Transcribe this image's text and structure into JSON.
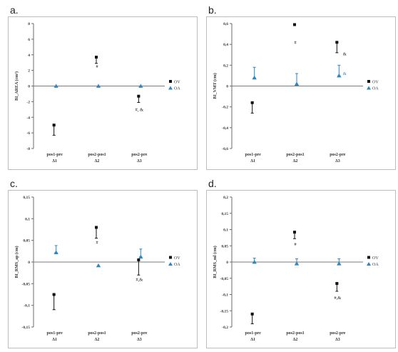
{
  "chart_data": [
    {
      "type": "scatter",
      "panel_label": "a.",
      "ylabel": "BI_AREA (cm²)",
      "ylim": [
        -8,
        8
      ],
      "yticks": [
        -8,
        -6,
        -4,
        -2,
        0,
        2,
        4,
        6,
        8
      ],
      "ytick_labels": [
        "-8",
        "-6",
        "-4",
        "-2",
        "0",
        "2",
        "4",
        "6",
        "8"
      ],
      "categories": [
        [
          "pos1-pre",
          "Δ1"
        ],
        [
          "pos2-pos1",
          "Δ2"
        ],
        [
          "pos2-pre",
          "Δ3"
        ]
      ],
      "series": [
        {
          "name": "OV",
          "marker": "square",
          "color": "#111111",
          "values": [
            -5.0,
            3.7,
            -1.3
          ],
          "err_low": [
            1.3,
            0,
            0.8
          ],
          "err_high": [
            0,
            0,
            0
          ],
          "err_up_extra": [
            0,
            0,
            0
          ],
          "err_down_bar": [
            1.3,
            0,
            0.8
          ],
          "err_up_bar": [
            0,
            0,
            0
          ]
        },
        {
          "name": "OA",
          "marker": "triangle",
          "color": "#2e86c1",
          "values": [
            0.0,
            0.0,
            0.0
          ]
        }
      ],
      "err_ov_low": [
        -6.3,
        2.9,
        -2.1
      ],
      "err_ov_high": [
        -5.0,
        3.7,
        -1.3
      ],
      "annotations": [
        {
          "text": "#",
          "category": 1,
          "y": 2.5,
          "color": "#111111"
        },
        {
          "text": "#, &",
          "category": 2,
          "y": -3.0,
          "color": "#111111"
        }
      ],
      "legend": [
        "OV",
        "OA"
      ],
      "legend_position": "right"
    },
    {
      "type": "scatter",
      "panel_label": "b.",
      "ylabel": "BI_VMT (cm)",
      "ylim": [
        -0.6,
        0.6
      ],
      "yticks": [
        -0.6,
        -0.4,
        -0.2,
        0,
        0.2,
        0.4,
        0.6
      ],
      "ytick_labels": [
        "-0,6",
        "-0,4",
        "-0,2",
        "0",
        "0,2",
        "0,4",
        "0,6"
      ],
      "categories": [
        [
          "pos1-pre",
          "Δ1"
        ],
        [
          "pos2-pos1",
          "Δ2"
        ],
        [
          "pos2-pre",
          "Δ3"
        ]
      ],
      "series": [
        {
          "name": "OV",
          "marker": "square",
          "color": "#111111",
          "values": [
            -0.16,
            0.59,
            0.42
          ]
        },
        {
          "name": "OA",
          "marker": "triangle",
          "color": "#2e86c1",
          "values": [
            0.08,
            0.02,
            0.1
          ]
        }
      ],
      "err_ov_low": [
        -0.26,
        0.59,
        0.32
      ],
      "err_ov_high": [
        -0.16,
        0.59,
        0.42
      ],
      "err_oa_low": [
        0.08,
        0.02,
        0.1
      ],
      "err_oa_high": [
        0.18,
        0.12,
        0.2
      ],
      "annotations": [
        {
          "text": "#",
          "category": 1,
          "y": 0.42,
          "color": "#111111"
        },
        {
          "text": "&",
          "category": 2,
          "y": 0.31,
          "color": "#111111",
          "dx": 10
        },
        {
          "text": "&",
          "category": 2,
          "y": 0.12,
          "color": "#2e86c1",
          "dx": 10
        }
      ],
      "legend": [
        "OV",
        "OA"
      ],
      "legend_position": "right"
    },
    {
      "type": "scatter",
      "panel_label": "c.",
      "ylabel": "BI_RMS_ap (cm)",
      "ylim": [
        -0.15,
        0.15
      ],
      "yticks": [
        -0.15,
        -0.1,
        -0.05,
        0,
        0.05,
        0.1,
        0.15
      ],
      "ytick_labels": [
        "-0,15",
        "-0,1",
        "-0,05",
        "0",
        "0,05",
        "0,1",
        "0,15"
      ],
      "categories": [
        [
          "pos1-pre",
          "Δ1"
        ],
        [
          "pos2-pos1",
          "Δ2"
        ],
        [
          "pos2-pre",
          "Δ3"
        ]
      ],
      "series": [
        {
          "name": "OV",
          "marker": "square",
          "color": "#111111",
          "values": [
            -0.075,
            0.08,
            0.005
          ]
        },
        {
          "name": "OA",
          "marker": "triangle",
          "color": "#2e86c1",
          "values": [
            0.022,
            -0.008,
            0.012
          ]
        }
      ],
      "err_ov_low": [
        -0.11,
        0.055,
        -0.03
      ],
      "err_ov_high": [
        -0.075,
        0.08,
        0.005
      ],
      "err_oa_low": [
        0.022,
        -0.008,
        0.012
      ],
      "err_oa_high": [
        0.038,
        -0.008,
        0.03
      ],
      "annotations": [
        {
          "text": "#",
          "category": 1,
          "y": 0.045,
          "color": "#111111"
        },
        {
          "text": "#,&",
          "category": 2,
          "y": -0.04,
          "color": "#111111"
        }
      ],
      "legend": [
        "OV",
        "OA"
      ],
      "legend_position": "right"
    },
    {
      "type": "scatter",
      "panel_label": "d.",
      "ylabel": "BI_RMS_ml (cm)",
      "ylim": [
        -0.2,
        0.2
      ],
      "yticks": [
        -0.2,
        -0.15,
        -0.1,
        -0.05,
        0,
        0.05,
        0.1,
        0.15,
        0.2
      ],
      "ytick_labels": [
        "-0,2",
        "-0,15",
        "-0,1",
        "-0,05",
        "0",
        "0,05",
        "0,1",
        "0,15",
        "0,2"
      ],
      "categories": [
        [
          "pos1-pre",
          "Δ1"
        ],
        [
          "pos2-pos1",
          "Δ2"
        ],
        [
          "pos2-pre",
          "Δ3"
        ]
      ],
      "series": [
        {
          "name": "OV",
          "marker": "square",
          "color": "#111111",
          "values": [
            -0.16,
            0.092,
            -0.066
          ]
        },
        {
          "name": "OA",
          "marker": "triangle",
          "color": "#2e86c1",
          "values": [
            0.0,
            -0.005,
            -0.005
          ]
        }
      ],
      "err_ov_low": [
        -0.19,
        0.072,
        -0.09
      ],
      "err_ov_high": [
        -0.16,
        0.092,
        -0.066
      ],
      "err_oa_low": [
        0.0,
        -0.005,
        -0.005
      ],
      "err_oa_high": [
        0.012,
        0.01,
        0.01
      ],
      "annotations": [
        {
          "text": "#",
          "category": 1,
          "y": 0.055,
          "color": "#111111"
        },
        {
          "text": "#,&",
          "category": 2,
          "y": -0.11,
          "color": "#111111"
        }
      ],
      "legend": [
        "OV",
        "OA"
      ],
      "legend_position": "right"
    }
  ]
}
